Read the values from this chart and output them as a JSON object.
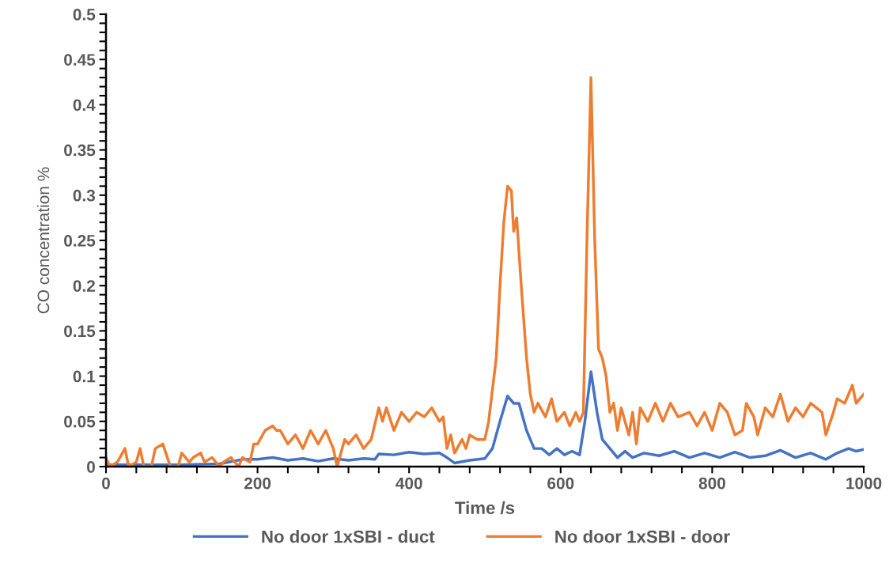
{
  "chart_data": {
    "type": "line",
    "xlabel": "Time /s",
    "ylabel": "CO concentration %",
    "legend": "bottom",
    "grid": false,
    "marker": "none",
    "line_style": "solid",
    "xlim": [
      0,
      1000
    ],
    "ylim": [
      0,
      0.5
    ],
    "xticks": [
      0,
      {
        "value": 40,
        "label": null
      },
      {
        "value": 80,
        "label": null
      },
      {
        "value": 120,
        "label": null
      },
      {
        "value": 160,
        "label": null
      },
      200,
      {
        "value": 240,
        "label": null
      },
      {
        "value": 280,
        "label": null
      },
      {
        "value": 320,
        "label": null
      },
      {
        "value": 360,
        "label": null
      },
      400,
      {
        "value": 440,
        "label": null
      },
      {
        "value": 480,
        "label": null
      },
      {
        "value": 520,
        "label": null
      },
      {
        "value": 560,
        "label": null
      },
      600,
      {
        "value": 640,
        "label": null
      },
      {
        "value": 680,
        "label": null
      },
      {
        "value": 720,
        "label": null
      },
      {
        "value": 760,
        "label": null
      },
      800,
      {
        "value": 840,
        "label": null
      },
      {
        "value": 880,
        "label": null
      },
      {
        "value": 920,
        "label": null
      },
      {
        "value": 960,
        "label": null
      },
      1000
    ],
    "yticks": [
      0,
      {
        "value": 0.01,
        "label": null
      },
      {
        "value": 0.02,
        "label": null
      },
      {
        "value": 0.03,
        "label": null
      },
      {
        "value": 0.04,
        "label": null
      },
      0.05,
      {
        "value": 0.06,
        "label": null
      },
      {
        "value": 0.07,
        "label": null
      },
      {
        "value": 0.08,
        "label": null
      },
      {
        "value": 0.09,
        "label": null
      },
      0.1,
      {
        "value": 0.11,
        "label": null
      },
      {
        "value": 0.12,
        "label": null
      },
      {
        "value": 0.13,
        "label": null
      },
      {
        "value": 0.14,
        "label": null
      },
      0.15,
      {
        "value": 0.16,
        "label": null
      },
      {
        "value": 0.17,
        "label": null
      },
      {
        "value": 0.18,
        "label": null
      },
      {
        "value": 0.19,
        "label": null
      },
      0.2,
      {
        "value": 0.21,
        "label": null
      },
      {
        "value": 0.22,
        "label": null
      },
      {
        "value": 0.23,
        "label": null
      },
      {
        "value": 0.24,
        "label": null
      },
      0.25,
      {
        "value": 0.26,
        "label": null
      },
      {
        "value": 0.27,
        "label": null
      },
      {
        "value": 0.28,
        "label": null
      },
      {
        "value": 0.29,
        "label": null
      },
      0.3,
      {
        "value": 0.31,
        "label": null
      },
      {
        "value": 0.32,
        "label": null
      },
      {
        "value": 0.33,
        "label": null
      },
      {
        "value": 0.34,
        "label": null
      },
      0.35,
      {
        "value": 0.36,
        "label": null
      },
      {
        "value": 0.37,
        "label": null
      },
      {
        "value": 0.38,
        "label": null
      },
      {
        "value": 0.39,
        "label": null
      },
      0.4,
      {
        "value": 0.41,
        "label": null
      },
      {
        "value": 0.42,
        "label": null
      },
      {
        "value": 0.43,
        "label": null
      },
      {
        "value": 0.44,
        "label": null
      },
      0.45,
      {
        "value": 0.46,
        "label": null
      },
      {
        "value": 0.47,
        "label": null
      },
      {
        "value": 0.48,
        "label": null
      },
      {
        "value": 0.49,
        "label": null
      },
      0.5
    ],
    "series": [
      {
        "name": "No door 1xSBI - duct",
        "color": "#4472c4",
        "x": [
          0,
          100,
          150,
          180,
          200,
          220,
          240,
          260,
          280,
          300,
          320,
          340,
          355,
          360,
          380,
          400,
          420,
          440,
          450,
          460,
          480,
          500,
          510,
          520,
          530,
          538,
          545,
          555,
          565,
          575,
          585,
          595,
          605,
          615,
          625,
          632,
          640,
          648,
          655,
          665,
          675,
          685,
          695,
          710,
          730,
          750,
          770,
          790,
          810,
          830,
          850,
          870,
          890,
          910,
          930,
          950,
          965,
          980,
          990,
          1000
        ],
        "values": [
          0.002,
          0.002,
          0.003,
          0.008,
          0.008,
          0.01,
          0.007,
          0.009,
          0.006,
          0.009,
          0.007,
          0.009,
          0.008,
          0.014,
          0.013,
          0.016,
          0.014,
          0.015,
          0.01,
          0.004,
          0.007,
          0.009,
          0.02,
          0.05,
          0.078,
          0.07,
          0.07,
          0.04,
          0.02,
          0.02,
          0.013,
          0.02,
          0.013,
          0.017,
          0.013,
          0.05,
          0.105,
          0.06,
          0.03,
          0.02,
          0.01,
          0.017,
          0.01,
          0.015,
          0.012,
          0.017,
          0.01,
          0.015,
          0.01,
          0.016,
          0.01,
          0.012,
          0.018,
          0.01,
          0.015,
          0.008,
          0.015,
          0.02,
          0.017,
          0.019
        ]
      },
      {
        "name": "No door 1xSBI - door",
        "color": "#ed7d31",
        "x": [
          0,
          5,
          15,
          25,
          30,
          40,
          45,
          50,
          60,
          65,
          75,
          85,
          95,
          100,
          110,
          115,
          125,
          130,
          140,
          150,
          155,
          165,
          175,
          180,
          190,
          195,
          200,
          210,
          220,
          225,
          230,
          240,
          250,
          260,
          270,
          280,
          290,
          300,
          305,
          315,
          320,
          330,
          340,
          350,
          360,
          365,
          370,
          380,
          390,
          400,
          410,
          420,
          430,
          440,
          445,
          450,
          455,
          460,
          470,
          475,
          480,
          490,
          500,
          505,
          515,
          520,
          525,
          530,
          535,
          538,
          542,
          548,
          555,
          560,
          565,
          570,
          580,
          588,
          595,
          605,
          612,
          620,
          625,
          630,
          635,
          640,
          645,
          650,
          655,
          660,
          665,
          670,
          675,
          680,
          690,
          695,
          700,
          705,
          715,
          725,
          735,
          745,
          755,
          770,
          780,
          790,
          800,
          810,
          820,
          830,
          840,
          845,
          855,
          860,
          870,
          880,
          890,
          900,
          910,
          920,
          930,
          945,
          950,
          960,
          965,
          975,
          985,
          990,
          995,
          1000
        ],
        "values": [
          0.01,
          0.0,
          0.005,
          0.02,
          0.0,
          0.005,
          0.02,
          0.0,
          0.0,
          0.02,
          0.025,
          0.0,
          0.0,
          0.015,
          0.005,
          0.01,
          0.015,
          0.005,
          0.01,
          0.0,
          0.005,
          0.01,
          0.0,
          0.01,
          0.005,
          0.025,
          0.025,
          0.04,
          0.045,
          0.04,
          0.04,
          0.025,
          0.035,
          0.02,
          0.04,
          0.025,
          0.04,
          0.02,
          0.0,
          0.03,
          0.025,
          0.035,
          0.02,
          0.03,
          0.065,
          0.05,
          0.065,
          0.04,
          0.06,
          0.05,
          0.06,
          0.055,
          0.065,
          0.05,
          0.055,
          0.02,
          0.035,
          0.015,
          0.03,
          0.02,
          0.035,
          0.03,
          0.03,
          0.05,
          0.12,
          0.2,
          0.27,
          0.31,
          0.305,
          0.26,
          0.275,
          0.2,
          0.12,
          0.08,
          0.06,
          0.07,
          0.055,
          0.075,
          0.05,
          0.06,
          0.045,
          0.06,
          0.05,
          0.06,
          0.26,
          0.43,
          0.25,
          0.13,
          0.12,
          0.1,
          0.06,
          0.07,
          0.04,
          0.065,
          0.035,
          0.06,
          0.025,
          0.065,
          0.05,
          0.07,
          0.05,
          0.07,
          0.055,
          0.06,
          0.045,
          0.06,
          0.04,
          0.07,
          0.06,
          0.035,
          0.04,
          0.07,
          0.055,
          0.035,
          0.065,
          0.055,
          0.08,
          0.05,
          0.065,
          0.055,
          0.07,
          0.06,
          0.035,
          0.06,
          0.075,
          0.07,
          0.09,
          0.07,
          0.075,
          0.08
        ]
      }
    ]
  }
}
